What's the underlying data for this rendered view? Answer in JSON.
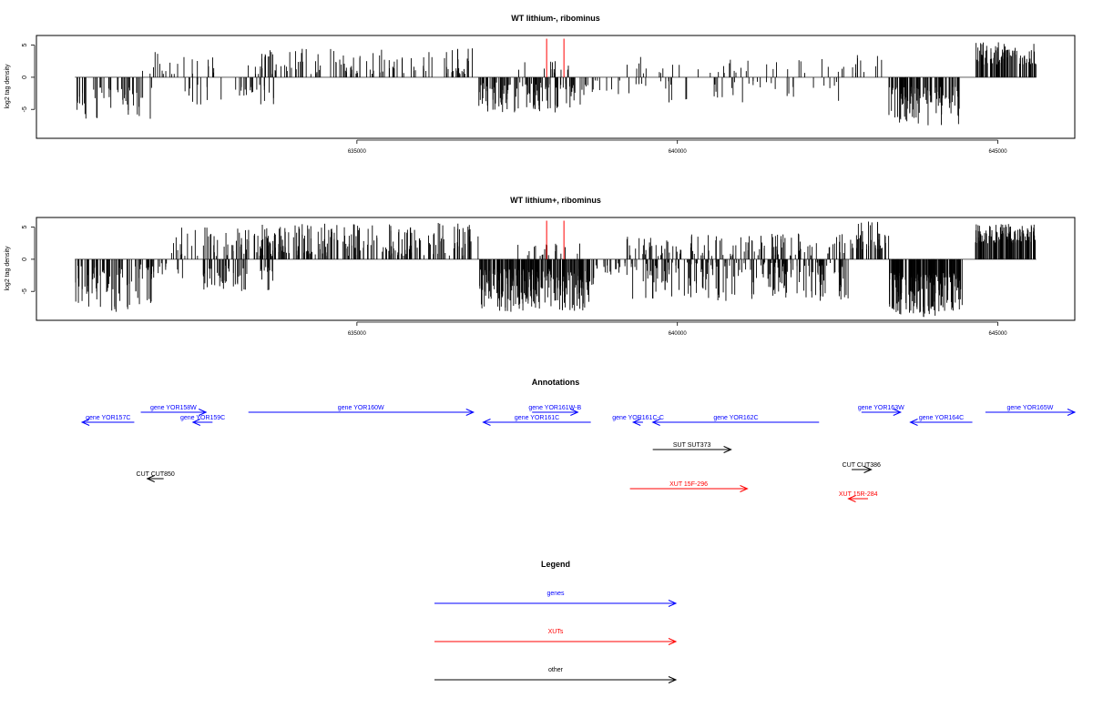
{
  "chart_data": [
    {
      "type": "bar",
      "title": "WT lithium-, ribominus",
      "ylabel": "log2 tag density",
      "xlabel": "",
      "ylim": [
        -9.5,
        6.5
      ],
      "xlim": [
        630000,
        646200
      ],
      "y_ticks": [
        5,
        0,
        -5
      ],
      "x_ticks": [
        635000,
        640000,
        645000
      ],
      "x_tick_labels": [
        "635000",
        "640000",
        "645000"
      ],
      "grid": false,
      "marker_lines": {
        "color": "#ff0000",
        "x": [
          637960,
          638230
        ],
        "ymax": 6.0
      },
      "regions": [
        {
          "from": 630600,
          "to": 631800,
          "sign": -1,
          "n": 45,
          "min": 1.5,
          "max": 6.5
        },
        {
          "from": 631600,
          "to": 632300,
          "sign": 1,
          "n": 12,
          "min": 0.5,
          "max": 4.0
        },
        {
          "from": 632300,
          "to": 633700,
          "sign": -1,
          "n": 30,
          "min": 1.0,
          "max": 4.5
        },
        {
          "from": 632200,
          "to": 632800,
          "sign": 1,
          "n": 10,
          "min": 0.5,
          "max": 3.8
        },
        {
          "from": 633300,
          "to": 636800,
          "sign": 1,
          "n": 120,
          "min": 0.5,
          "max": 4.5
        },
        {
          "from": 636900,
          "to": 638500,
          "sign": -1,
          "n": 110,
          "min": 0.8,
          "max": 5.5
        },
        {
          "from": 637500,
          "to": 638300,
          "sign": 1,
          "n": 14,
          "min": 0.5,
          "max": 2.5
        },
        {
          "from": 638500,
          "to": 639100,
          "sign": -1,
          "n": 14,
          "min": 0.5,
          "max": 3.0
        },
        {
          "from": 639200,
          "to": 642600,
          "sign": 1,
          "n": 35,
          "min": 0.5,
          "max": 3.2
        },
        {
          "from": 639200,
          "to": 642600,
          "sign": -1,
          "n": 40,
          "min": 0.5,
          "max": 4.0
        },
        {
          "from": 642700,
          "to": 643200,
          "sign": 1,
          "n": 10,
          "min": 0.5,
          "max": 3.5
        },
        {
          "from": 643300,
          "to": 644400,
          "sign": -1,
          "n": 110,
          "min": 1.5,
          "max": 7.5
        },
        {
          "from": 644650,
          "to": 645600,
          "sign": 1,
          "n": 90,
          "min": 2.0,
          "max": 5.7
        }
      ]
    },
    {
      "type": "bar",
      "title": "WT lithium+, ribominus",
      "ylabel": "log2 tag density",
      "xlabel": "",
      "ylim": [
        -9.5,
        6.5
      ],
      "xlim": [
        630000,
        646200
      ],
      "y_ticks": [
        5,
        0,
        -5
      ],
      "x_ticks": [
        635000,
        640000,
        645000
      ],
      "x_tick_labels": [
        "635000",
        "640000",
        "645000"
      ],
      "grid": false,
      "marker_lines": {
        "color": "#ff0000",
        "x": [
          637960,
          638230
        ],
        "ymax": 6.0
      },
      "regions": [
        {
          "from": 630600,
          "to": 631800,
          "sign": -1,
          "n": 80,
          "min": 1.0,
          "max": 8.2
        },
        {
          "from": 631600,
          "to": 632300,
          "sign": -1,
          "n": 15,
          "min": 0.5,
          "max": 3.0
        },
        {
          "from": 632100,
          "to": 633700,
          "sign": 1,
          "n": 60,
          "min": 0.5,
          "max": 5.0
        },
        {
          "from": 632600,
          "to": 633700,
          "sign": -1,
          "n": 50,
          "min": 1.0,
          "max": 5.0
        },
        {
          "from": 633400,
          "to": 636900,
          "sign": 1,
          "n": 200,
          "min": 0.5,
          "max": 5.7
        },
        {
          "from": 636900,
          "to": 638700,
          "sign": -1,
          "n": 260,
          "min": 1.5,
          "max": 8.2
        },
        {
          "from": 637500,
          "to": 638600,
          "sign": 1,
          "n": 20,
          "min": 0.5,
          "max": 2.5
        },
        {
          "from": 638700,
          "to": 639200,
          "sign": -1,
          "n": 20,
          "min": 0.5,
          "max": 2.5
        },
        {
          "from": 639200,
          "to": 642700,
          "sign": 1,
          "n": 120,
          "min": 0.5,
          "max": 4.0
        },
        {
          "from": 639200,
          "to": 642700,
          "sign": -1,
          "n": 180,
          "min": 0.5,
          "max": 6.5
        },
        {
          "from": 642700,
          "to": 643300,
          "sign": 1,
          "n": 40,
          "min": 1.5,
          "max": 6.0
        },
        {
          "from": 643300,
          "to": 644450,
          "sign": -1,
          "n": 180,
          "min": 2.0,
          "max": 9.0
        },
        {
          "from": 644650,
          "to": 645600,
          "sign": 1,
          "n": 120,
          "min": 2.5,
          "max": 5.5
        }
      ]
    }
  ],
  "annotations": {
    "title": "Annotations",
    "xlim": [
      630000,
      646200
    ],
    "colors": {
      "genes": "#0000ff",
      "XUTs": "#ff0000",
      "other": "#000000"
    },
    "features": [
      {
        "label": "gene YOR157C",
        "kind": "genes",
        "start": 630700,
        "end": 631500,
        "strand": "-",
        "row": 1
      },
      {
        "label": "gene YOR158W",
        "kind": "genes",
        "start": 631600,
        "end": 632600,
        "strand": "+",
        "row": 0
      },
      {
        "label": "gene YOR159C",
        "kind": "genes",
        "start": 632400,
        "end": 632700,
        "strand": "-",
        "row": 1
      },
      {
        "label": "gene YOR160W",
        "kind": "genes",
        "start": 633250,
        "end": 636700,
        "strand": "+",
        "row": 0
      },
      {
        "label": "gene YOR161W-B",
        "kind": "genes",
        "start": 637600,
        "end": 638300,
        "strand": "+",
        "row": 0
      },
      {
        "label": "gene YOR161C",
        "kind": "genes",
        "start": 636850,
        "end": 638500,
        "strand": "-",
        "row": 1
      },
      {
        "label": "gene YOR161C-C",
        "kind": "genes",
        "start": 639150,
        "end": 639300,
        "strand": "-",
        "row": 1
      },
      {
        "label": "gene YOR162C",
        "kind": "genes",
        "start": 639450,
        "end": 642000,
        "strand": "-",
        "row": 1
      },
      {
        "label": "gene YOR163W",
        "kind": "genes",
        "start": 642650,
        "end": 643250,
        "strand": "+",
        "row": 0
      },
      {
        "label": "gene YOR164C",
        "kind": "genes",
        "start": 643400,
        "end": 644350,
        "strand": "-",
        "row": 1
      },
      {
        "label": "gene YOR165W",
        "kind": "genes",
        "start": 644550,
        "end": 646200,
        "strand": "+",
        "row": 0
      },
      {
        "label": "SUT SUT373",
        "kind": "other",
        "start": 639450,
        "end": 640650,
        "strand": "+",
        "row": 2
      },
      {
        "label": "CUT CUT386",
        "kind": "other",
        "start": 642500,
        "end": 642800,
        "strand": "+",
        "row": 3
      },
      {
        "label": "CUT CUT850",
        "kind": "other",
        "start": 631700,
        "end": 631950,
        "strand": "-",
        "row": 4
      },
      {
        "label": "XUT 15F-296",
        "kind": "XUTs",
        "start": 639100,
        "end": 640900,
        "strand": "+",
        "row": 5
      },
      {
        "label": "XUT 15R-284",
        "kind": "XUTs",
        "start": 642450,
        "end": 642750,
        "strand": "-",
        "row": 6
      }
    ]
  },
  "legend": {
    "title": "Legend",
    "entries": [
      {
        "label": "genes",
        "color": "#0000ff"
      },
      {
        "label": "XUTs",
        "color": "#ff0000"
      },
      {
        "label": "other",
        "color": "#000000"
      }
    ]
  }
}
